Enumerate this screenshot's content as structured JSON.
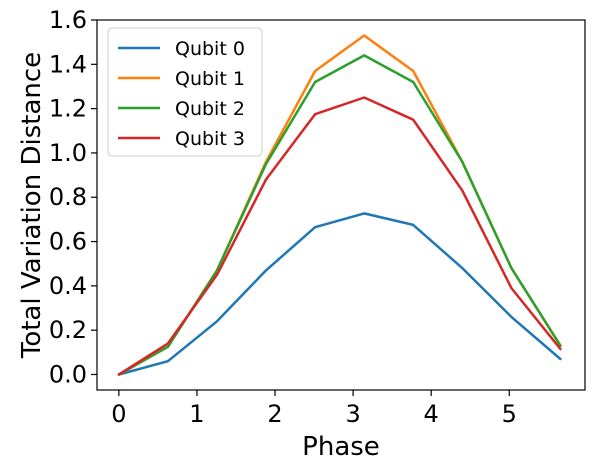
{
  "chart_data": {
    "type": "line",
    "title": "",
    "xlabel": "Phase",
    "ylabel": "Total Variation Distance",
    "xlim": [
      -0.28,
      5.97
    ],
    "ylim": [
      -0.07,
      1.6
    ],
    "xticks": [
      0,
      1,
      2,
      3,
      4,
      5
    ],
    "xtick_labels": [
      "0",
      "1",
      "2",
      "3",
      "4",
      "5"
    ],
    "yticks": [
      0.0,
      0.2,
      0.4,
      0.6,
      0.8,
      1.0,
      1.2,
      1.4,
      1.6
    ],
    "ytick_labels": [
      "0.0",
      "0.2",
      "0.4",
      "0.6",
      "0.8",
      "1.0",
      "1.2",
      "1.4",
      "1.6"
    ],
    "grid": false,
    "legend_position": "top-left",
    "x": [
      0,
      0.628,
      1.257,
      1.885,
      2.513,
      3.142,
      3.77,
      4.398,
      5.027,
      5.655
    ],
    "series": [
      {
        "name": "Qubit 0",
        "color": "#1f77b4",
        "values": [
          0.0,
          0.06,
          0.24,
          0.47,
          0.665,
          0.727,
          0.675,
          0.48,
          0.26,
          0.07
        ]
      },
      {
        "name": "Qubit 1",
        "color": "#ff7f0e",
        "values": [
          0.0,
          0.125,
          0.47,
          0.96,
          1.37,
          1.53,
          1.37,
          0.96,
          0.48,
          0.13
        ]
      },
      {
        "name": "Qubit 2",
        "color": "#2ca02c",
        "values": [
          0.0,
          0.125,
          0.47,
          0.95,
          1.32,
          1.44,
          1.32,
          0.96,
          0.48,
          0.13
        ]
      },
      {
        "name": "Qubit 3",
        "color": "#d62728",
        "values": [
          0.0,
          0.14,
          0.45,
          0.88,
          1.175,
          1.25,
          1.15,
          0.83,
          0.39,
          0.115
        ]
      }
    ]
  }
}
